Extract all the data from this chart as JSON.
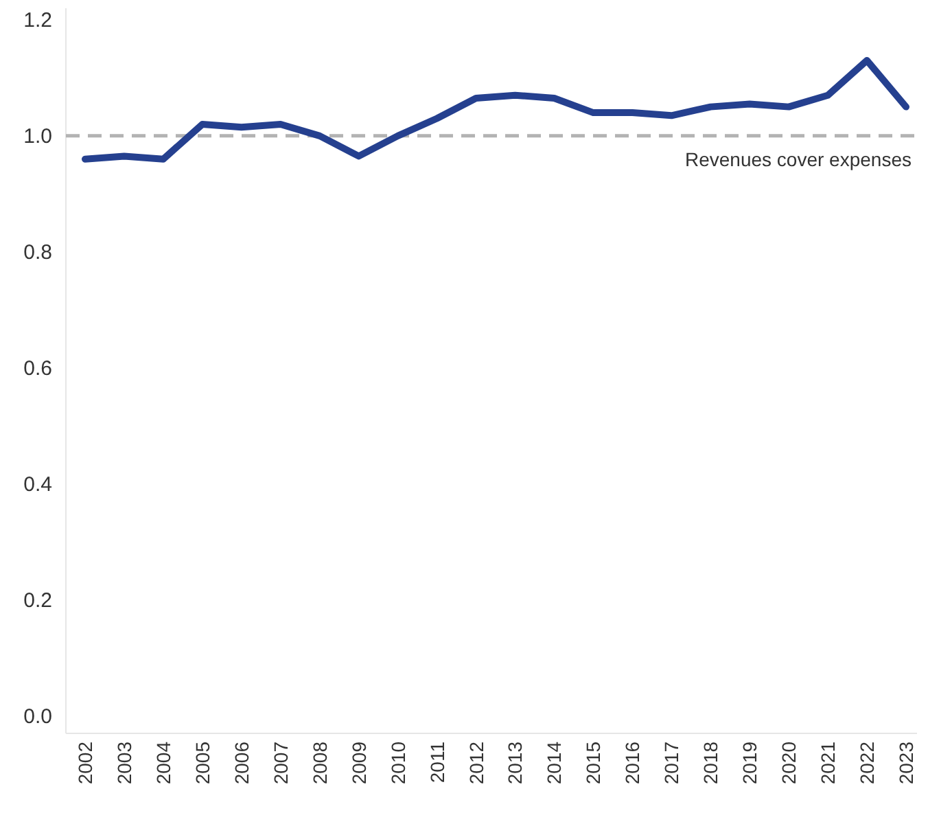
{
  "chart_data": {
    "type": "line",
    "categories": [
      "2002",
      "2003",
      "2004",
      "2005",
      "2006",
      "2007",
      "2008",
      "2009",
      "2010",
      "2011",
      "2012",
      "2013",
      "2014",
      "2015",
      "2016",
      "2017",
      "2018",
      "2019",
      "2020",
      "2021",
      "2022",
      "2023"
    ],
    "series": [
      {
        "color": "#25408f",
        "values": [
          0.96,
          0.965,
          0.96,
          1.02,
          1.015,
          1.02,
          1.0,
          0.965,
          1.0,
          1.03,
          1.065,
          1.07,
          1.065,
          1.04,
          1.04,
          1.035,
          1.05,
          1.055,
          1.05,
          1.07,
          1.13,
          1.05
        ]
      }
    ],
    "ylim": [
      -0.03,
      1.22
    ],
    "yticks": [
      {
        "value": 0,
        "label": "0.0"
      },
      0.2,
      0.4,
      0.6,
      0.8,
      {
        "value": 1,
        "label": "1.0"
      },
      {
        "value": 1.2,
        "label": "1.2"
      }
    ],
    "ref_lines": [
      {
        "axis": "y",
        "value": 1,
        "label": "Revenues cover expenses",
        "color": "#b3b3b3",
        "line_style": "dashed"
      }
    ],
    "grid": false,
    "marker": "none",
    "line_style": "solid"
  }
}
